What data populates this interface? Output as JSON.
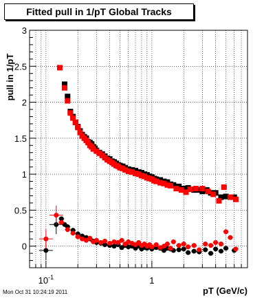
{
  "title": "Fitted pull in 1/pT  Global Tracks",
  "timestamp": "Mon Oct 31 10:24:19 2011",
  "chart_data": {
    "type": "scatter",
    "title": "Fitted pull in 1/pT  Global Tracks",
    "xlabel": "pT (GeV/c)",
    "ylabel": "pull in 1/pT",
    "xscale": "log",
    "xlim": [
      0.07,
      8
    ],
    "ylim": [
      -0.3,
      3
    ],
    "xticks": [
      {
        "value": 0.1,
        "base": "10",
        "exp": "-1"
      },
      {
        "value": 1,
        "label": "1"
      }
    ],
    "yticks": [
      0,
      0.5,
      1,
      1.5,
      2,
      2.5,
      3
    ],
    "grid": true,
    "colors": {
      "black": "#000000",
      "red": "#ff0000"
    },
    "series": [
      {
        "color": "#000000",
        "marker": "square",
        "points": [
          [
            0.15,
            2.25
          ],
          [
            0.16,
            2.08
          ],
          [
            0.17,
            1.87
          ],
          [
            0.18,
            1.8
          ],
          [
            0.19,
            1.72
          ],
          [
            0.2,
            1.66
          ],
          [
            0.21,
            1.6
          ],
          [
            0.22,
            1.55
          ],
          [
            0.23,
            1.52
          ],
          [
            0.24,
            1.5
          ],
          [
            0.25,
            1.45
          ],
          [
            0.26,
            1.44
          ],
          [
            0.27,
            1.42
          ],
          [
            0.28,
            1.38
          ],
          [
            0.29,
            1.36
          ],
          [
            0.3,
            1.33
          ],
          [
            0.32,
            1.3
          ],
          [
            0.34,
            1.28
          ],
          [
            0.36,
            1.25
          ],
          [
            0.38,
            1.22
          ],
          [
            0.4,
            1.21
          ],
          [
            0.42,
            1.18
          ],
          [
            0.44,
            1.17
          ],
          [
            0.46,
            1.15
          ],
          [
            0.48,
            1.13
          ],
          [
            0.5,
            1.12
          ],
          [
            0.53,
            1.11
          ],
          [
            0.56,
            1.09
          ],
          [
            0.6,
            1.07
          ],
          [
            0.65,
            1.06
          ],
          [
            0.7,
            1.05
          ],
          [
            0.75,
            1.03
          ],
          [
            0.8,
            1.02
          ],
          [
            0.85,
            1.0
          ],
          [
            0.9,
            0.99
          ],
          [
            0.95,
            0.97
          ],
          [
            1.0,
            0.96
          ],
          [
            1.05,
            0.94
          ],
          [
            1.1,
            0.93
          ],
          [
            1.2,
            0.92
          ],
          [
            1.3,
            0.9
          ],
          [
            1.4,
            0.89
          ],
          [
            1.5,
            0.86
          ],
          [
            1.6,
            0.85
          ],
          [
            1.8,
            0.83
          ],
          [
            2.0,
            0.8
          ],
          [
            2.2,
            0.81
          ],
          [
            2.5,
            0.78
          ],
          [
            2.8,
            0.78
          ],
          [
            3.0,
            0.76
          ],
          [
            3.3,
            0.78
          ],
          [
            3.6,
            0.74
          ],
          [
            4.0,
            0.74
          ],
          [
            4.5,
            0.68
          ],
          [
            5.0,
            0.69
          ],
          [
            6.0,
            0.68
          ]
        ],
        "points_low": [
          [
            0.1,
            -0.06
          ],
          [
            0.125,
            0.3
          ],
          [
            0.14,
            0.38
          ],
          [
            0.15,
            0.3
          ],
          [
            0.16,
            0.27
          ],
          [
            0.18,
            0.22
          ],
          [
            0.2,
            0.17
          ],
          [
            0.22,
            0.14
          ],
          [
            0.24,
            0.12
          ],
          [
            0.26,
            0.1
          ],
          [
            0.28,
            0.07
          ],
          [
            0.3,
            0.05
          ],
          [
            0.33,
            0.04
          ],
          [
            0.36,
            0.02
          ],
          [
            0.4,
            0.01
          ],
          [
            0.44,
            0.0
          ],
          [
            0.48,
            0.02
          ],
          [
            0.52,
            -0.02
          ],
          [
            0.56,
            0.01
          ],
          [
            0.6,
            -0.01
          ],
          [
            0.65,
            0.0
          ],
          [
            0.7,
            -0.03
          ],
          [
            0.75,
            0.0
          ],
          [
            0.8,
            -0.04
          ],
          [
            0.85,
            -0.02
          ],
          [
            0.9,
            -0.03
          ],
          [
            0.95,
            -0.01
          ],
          [
            1.0,
            -0.04
          ],
          [
            1.1,
            -0.02
          ],
          [
            1.2,
            -0.03
          ],
          [
            1.3,
            -0.06
          ],
          [
            1.4,
            -0.03
          ],
          [
            1.5,
            -0.04
          ],
          [
            1.6,
            -0.06
          ],
          [
            1.8,
            -0.05
          ],
          [
            2.0,
            -0.04
          ],
          [
            2.2,
            -0.09
          ],
          [
            2.5,
            -0.07
          ],
          [
            2.8,
            -0.08
          ],
          [
            3.2,
            -0.05
          ],
          [
            3.6,
            -0.1
          ],
          [
            4.0,
            -0.04
          ],
          [
            4.5,
            -0.07
          ],
          [
            5.0,
            -0.03
          ],
          [
            6.0,
            -0.06
          ]
        ]
      },
      {
        "color": "#ff0000",
        "marker": "square",
        "points": [
          [
            0.135,
            2.48
          ],
          [
            0.15,
            2.2
          ],
          [
            0.16,
            2.02
          ],
          [
            0.17,
            1.85
          ],
          [
            0.18,
            1.78
          ],
          [
            0.19,
            1.72
          ],
          [
            0.2,
            1.65
          ],
          [
            0.21,
            1.58
          ],
          [
            0.22,
            1.53
          ],
          [
            0.23,
            1.5
          ],
          [
            0.24,
            1.47
          ],
          [
            0.25,
            1.44
          ],
          [
            0.26,
            1.4
          ],
          [
            0.27,
            1.38
          ],
          [
            0.28,
            1.35
          ],
          [
            0.3,
            1.32
          ],
          [
            0.32,
            1.29
          ],
          [
            0.34,
            1.26
          ],
          [
            0.36,
            1.23
          ],
          [
            0.38,
            1.2
          ],
          [
            0.4,
            1.18
          ],
          [
            0.42,
            1.16
          ],
          [
            0.44,
            1.14
          ],
          [
            0.46,
            1.12
          ],
          [
            0.48,
            1.11
          ],
          [
            0.5,
            1.09
          ],
          [
            0.53,
            1.08
          ],
          [
            0.56,
            1.06
          ],
          [
            0.6,
            1.04
          ],
          [
            0.65,
            1.03
          ],
          [
            0.7,
            1.01
          ],
          [
            0.75,
            1.0
          ],
          [
            0.8,
            0.98
          ],
          [
            0.85,
            0.97
          ],
          [
            0.9,
            0.95
          ],
          [
            0.95,
            0.94
          ],
          [
            1.0,
            0.93
          ],
          [
            1.05,
            0.91
          ],
          [
            1.1,
            0.9
          ],
          [
            1.2,
            0.88
          ],
          [
            1.3,
            0.87
          ],
          [
            1.4,
            0.85
          ],
          [
            1.5,
            0.84
          ],
          [
            1.7,
            0.8
          ],
          [
            1.9,
            0.78
          ],
          [
            2.1,
            0.75
          ],
          [
            2.3,
            0.79
          ],
          [
            2.6,
            0.8
          ],
          [
            3.0,
            0.8
          ],
          [
            3.4,
            0.76
          ],
          [
            3.8,
            0.72
          ],
          [
            4.3,
            0.63
          ],
          [
            4.8,
            0.82
          ],
          [
            5.5,
            0.68
          ],
          [
            6.2,
            0.65
          ]
        ],
        "points_low": [
          [
            0.1,
            0.1
          ],
          [
            0.125,
            0.43
          ],
          [
            0.14,
            0.33
          ],
          [
            0.16,
            0.23
          ],
          [
            0.18,
            0.18
          ],
          [
            0.2,
            0.13
          ],
          [
            0.22,
            0.1
          ],
          [
            0.24,
            0.08
          ],
          [
            0.26,
            0.11
          ],
          [
            0.28,
            0.06
          ],
          [
            0.3,
            0.08
          ],
          [
            0.33,
            0.05
          ],
          [
            0.36,
            0.07
          ],
          [
            0.4,
            0.04
          ],
          [
            0.44,
            0.06
          ],
          [
            0.48,
            0.05
          ],
          [
            0.52,
            0.08
          ],
          [
            0.56,
            0.03
          ],
          [
            0.6,
            0.06
          ],
          [
            0.65,
            0.04
          ],
          [
            0.7,
            0.02
          ],
          [
            0.75,
            0.05
          ],
          [
            0.8,
            0.01
          ],
          [
            0.85,
            0.03
          ],
          [
            0.9,
            0.0
          ],
          [
            0.95,
            0.02
          ],
          [
            1.0,
            -0.01
          ],
          [
            1.1,
            0.02
          ],
          [
            1.2,
            -0.02
          ],
          [
            1.3,
            0.0
          ],
          [
            1.4,
            0.03
          ],
          [
            1.5,
            -0.03
          ],
          [
            1.6,
            0.06
          ],
          [
            1.8,
            0.01
          ],
          [
            2.0,
            0.03
          ],
          [
            2.2,
            -0.01
          ],
          [
            2.5,
            0.01
          ],
          [
            2.8,
            -0.05
          ],
          [
            3.2,
            0.03
          ],
          [
            3.6,
            0.01
          ],
          [
            4.0,
            0.05
          ],
          [
            4.5,
            0.03
          ],
          [
            5.0,
            0.2
          ],
          [
            5.5,
            0.12
          ],
          [
            6.2,
            -0.04
          ]
        ]
      }
    ]
  }
}
